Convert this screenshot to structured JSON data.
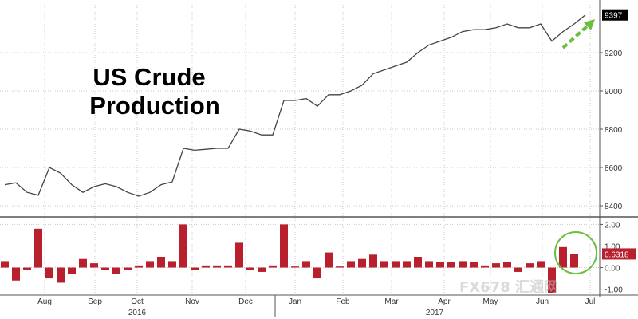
{
  "chart_data": [
    {
      "type": "line",
      "title_lines": [
        "US Crude",
        "Production"
      ],
      "xlabel": "",
      "ylabel": "",
      "ylim": [
        8350,
        9450
      ],
      "yticks": [
        8400,
        8600,
        8800,
        9000,
        9200
      ],
      "last_value_label": "9397",
      "grid": true,
      "series": [
        {
          "values": [
            8510,
            8520,
            8470,
            8455,
            8600,
            8570,
            8510,
            8470,
            8500,
            8515,
            8500,
            8470,
            8450,
            8470,
            8510,
            8525,
            8700,
            8690,
            8695,
            8700,
            8700,
            8800,
            8790,
            8770,
            8770,
            8950,
            8950,
            8960,
            8920,
            8980,
            8980,
            9000,
            9030,
            9090,
            9110,
            9130,
            9150,
            9200,
            9240,
            9260,
            9280,
            9310,
            9320,
            9320,
            9330,
            9350,
            9330,
            9330,
            9350,
            9260,
            9310,
            9350,
            9397
          ]
        }
      ],
      "annotation": "green dashed arrow pointing up-right"
    },
    {
      "type": "bar",
      "ylim": [
        -1.2,
        2.2
      ],
      "yticks": [
        "2.00",
        "1.00",
        "0.00",
        "-1.00"
      ],
      "last_value_label": "0.6318",
      "bar_color": "#b8202e",
      "grid": true,
      "series": [
        {
          "values": [
            0.3,
            -0.6,
            -0.1,
            1.8,
            -0.5,
            -0.7,
            -0.3,
            0.4,
            0.2,
            -0.1,
            -0.3,
            -0.1,
            0.1,
            0.3,
            0.5,
            0.3,
            2.0,
            -0.1,
            0.1,
            0.1,
            0.1,
            1.15,
            -0.1,
            -0.2,
            0.1,
            2.0,
            0.05,
            0.3,
            -0.5,
            0.7,
            0.05,
            0.3,
            0.4,
            0.6,
            0.3,
            0.3,
            0.3,
            0.5,
            0.3,
            0.25,
            0.25,
            0.3,
            0.25,
            0.1,
            0.2,
            0.25,
            -0.2,
            0.2,
            0.3,
            -1.2,
            0.95,
            0.6318
          ]
        }
      ],
      "annotation": "green circle around last two bars"
    }
  ],
  "x_axis": {
    "months": [
      "Aug",
      "Sep",
      "Oct",
      "Nov",
      "Dec",
      "Jan",
      "Feb",
      "Mar",
      "Apr",
      "May",
      "Jun",
      "Jul"
    ],
    "years": [
      "2016",
      "2017"
    ]
  },
  "watermark": "FX678 汇通网",
  "colors": {
    "line": "#444444",
    "bar": "#b8202e",
    "annotation": "#6cbf3c",
    "grid": "#c8c8c8",
    "label_box": "#000000",
    "label_box_red": "#b8202e"
  }
}
